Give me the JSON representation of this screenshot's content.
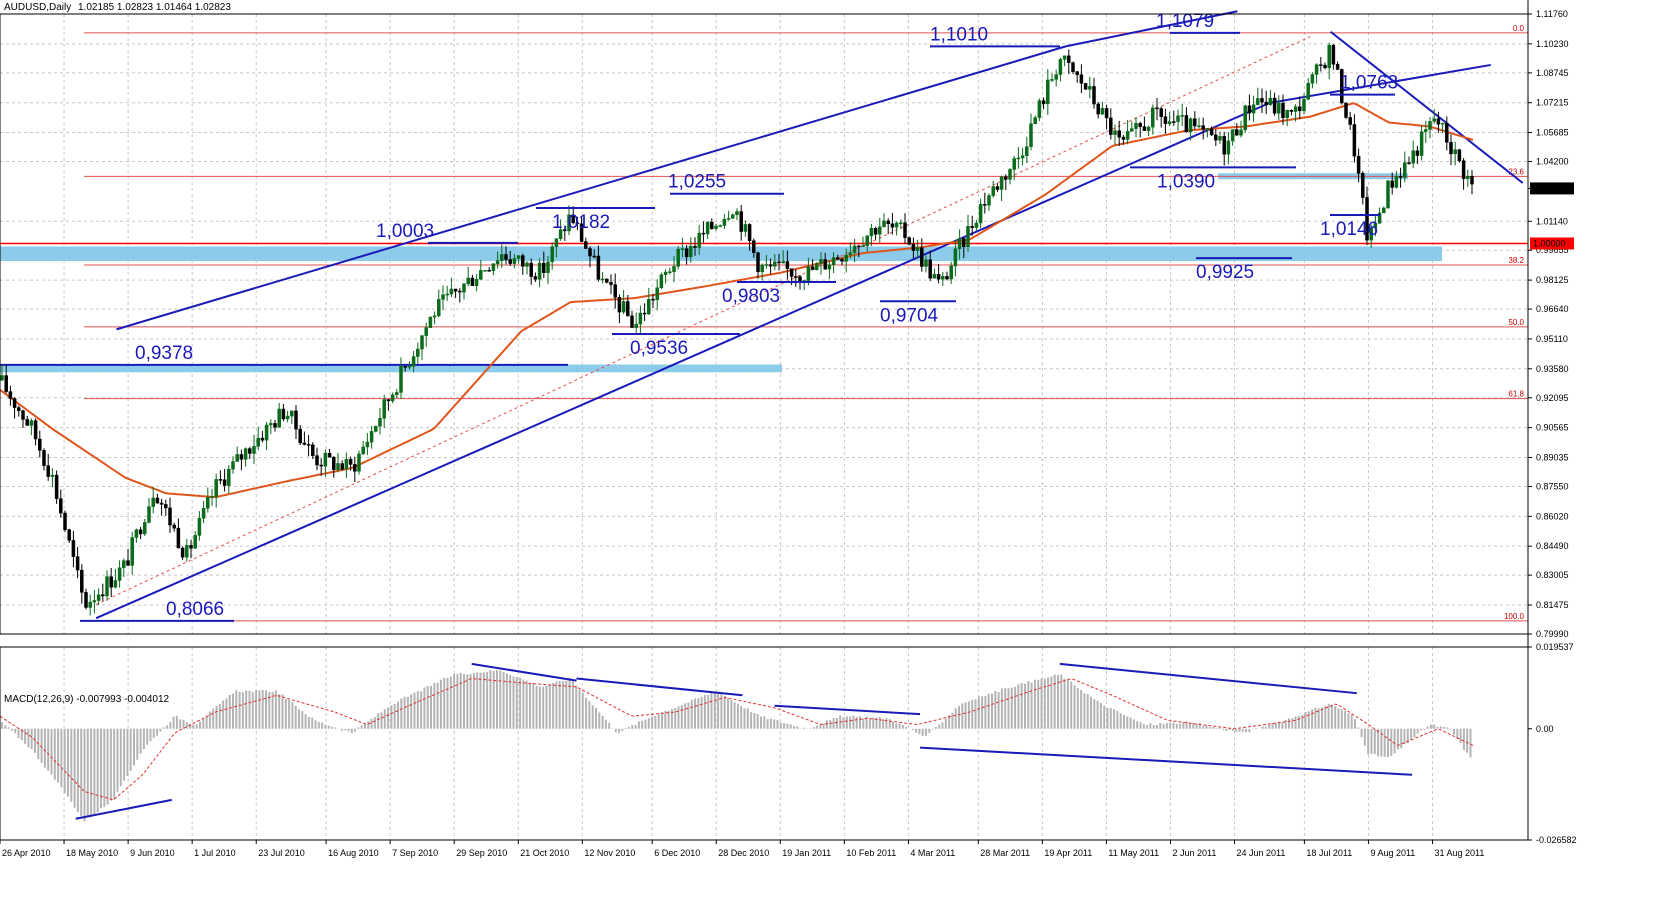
{
  "window": {
    "symbol_label": "AUDUSD,Daily",
    "ohlc_label": "1.02185 1.02823 1.01464 1.02823",
    "macd_label": "MACD(12,26,9) -0.007993 -0.004012"
  },
  "colors": {
    "background": "#ffffff",
    "grid": "#c8c8c8",
    "candle_up": "#0a6b1a",
    "candle_down": "#000000",
    "moving_average": "#e0551b",
    "trendline": "#1a1ab8",
    "fib_line": "#e05050",
    "zone": "#86c8e8",
    "macd_hist": "#b4b4b4",
    "macd_signal": "#e03030",
    "current_price_bg": "#000000",
    "level_price_bg": "#ff0000"
  },
  "chart_data": {
    "type": "candlestick",
    "title": "",
    "main_panel": {
      "price_scale": [
        "1.11760",
        "1.10230",
        "1.08745",
        "1.07215",
        "1.05685",
        "1.04200",
        "1.02823",
        "1.01140",
        "0.99655",
        "0.98125",
        "0.96640",
        "0.95110",
        "0.93580",
        "0.92095",
        "0.90565",
        "0.89035",
        "0.87550",
        "0.86020",
        "0.84490",
        "0.83005",
        "0.81475",
        "0.79990"
      ],
      "ylim": [
        0.7999,
        1.1176
      ],
      "current_price": "1.02823",
      "marked_price": "1.00000",
      "fibonacci_levels": [
        {
          "label": "0.0",
          "price": 1.1079
        },
        {
          "label": "23.6",
          "price": 1.0344
        },
        {
          "label": "38.2",
          "price": 0.989
        },
        {
          "label": "50.0",
          "price": 0.9573
        },
        {
          "label": "61.8",
          "price": 0.9205
        },
        {
          "label": "100.0",
          "price": 0.8066
        }
      ],
      "annotations": [
        {
          "text": "1,1010",
          "price": 1.101,
          "date": "2011-04-25"
        },
        {
          "text": "1,1079",
          "price": 1.1079,
          "date": "2011-07-27"
        },
        {
          "text": "1,0763",
          "price": 1.0763,
          "date": "2011-09-01"
        },
        {
          "text": "1,0255",
          "price": 1.0255,
          "date": "2011-01-03"
        },
        {
          "text": "1,0182",
          "price": 1.0182,
          "date": "2010-11-08"
        },
        {
          "text": "1,0003",
          "price": 1.0003,
          "date": "2010-10-15"
        },
        {
          "text": "1,0390",
          "price": 1.039,
          "date": "2011-06-24"
        },
        {
          "text": "1,0146",
          "price": 1.0146,
          "date": "2011-09-12"
        },
        {
          "text": "0,9925",
          "price": 0.9925,
          "date": "2011-08-09"
        },
        {
          "text": "0,9803",
          "price": 0.9803,
          "date": "2011-01-19"
        },
        {
          "text": "0,9704",
          "price": 0.9704,
          "date": "2011-03-15"
        },
        {
          "text": "0,9536",
          "price": 0.9536,
          "date": "2010-11-30"
        },
        {
          "text": "0,9378",
          "price": 0.9378,
          "date": "2010-05-31"
        },
        {
          "text": "0,8066",
          "price": 0.8066,
          "date": "2010-05-25"
        }
      ],
      "zones": [
        {
          "from": 0.991,
          "to": 0.9985
        },
        {
          "from": 0.934,
          "to": 0.938
        },
        {
          "from": 1.0335,
          "to": 1.036
        }
      ]
    },
    "macd_panel": {
      "price_scale": [
        "0.019537",
        "0.00",
        "-0.026582"
      ],
      "ylim": [
        -0.026582,
        0.019537
      ]
    },
    "date_ticks": [
      "26 Apr 2010",
      "18 May 2010",
      "9 Jun 2010",
      "1 Jul 2010",
      "23 Jul 2010",
      "16 Aug 2010",
      "7 Sep 2010",
      "29 Sep 2010",
      "21 Oct 2010",
      "12 Nov 2010",
      "6 Dec 2010",
      "28 Dec 2010",
      "19 Jan 2011",
      "10 Feb 2011",
      "4 Mar 2011",
      "28 Mar 2011",
      "19 Apr 2011",
      "11 May 2011",
      "2 Jun 2011",
      "24 Jun 2011",
      "18 Jul 2011",
      "9 Aug 2011",
      "31 Aug 2011"
    ],
    "series": [
      {
        "name": "AUDUSD",
        "type": "candlestick",
        "anchors": [
          [
            "2010-04-26",
            0.93
          ],
          [
            "2010-05-07",
            0.905
          ],
          [
            "2010-05-14",
            0.88
          ],
          [
            "2010-05-25",
            0.815
          ],
          [
            "2010-06-08",
            0.835
          ],
          [
            "2010-06-18",
            0.875
          ],
          [
            "2010-06-29",
            0.84
          ],
          [
            "2010-07-09",
            0.875
          ],
          [
            "2010-07-20",
            0.895
          ],
          [
            "2010-08-02",
            0.915
          ],
          [
            "2010-08-12",
            0.89
          ],
          [
            "2010-08-25",
            0.885
          ],
          [
            "2010-09-08",
            0.925
          ],
          [
            "2010-09-22",
            0.965
          ],
          [
            "2010-10-07",
            0.985
          ],
          [
            "2010-10-15",
            0.995
          ],
          [
            "2010-10-29",
            0.985
          ],
          [
            "2010-11-08",
            1.015
          ],
          [
            "2010-11-19",
            0.98
          ],
          [
            "2010-11-30",
            0.958
          ],
          [
            "2010-12-13",
            0.99
          ],
          [
            "2010-12-24",
            1.005
          ],
          [
            "2011-01-03",
            1.02
          ],
          [
            "2011-01-12",
            0.988
          ],
          [
            "2011-01-28",
            0.985
          ],
          [
            "2011-02-09",
            0.995
          ],
          [
            "2011-02-22",
            1.01
          ],
          [
            "2011-03-03",
            1.005
          ],
          [
            "2011-03-15",
            0.978
          ],
          [
            "2011-03-29",
            1.02
          ],
          [
            "2011-04-11",
            1.045
          ],
          [
            "2011-04-25",
            1.095
          ],
          [
            "2011-05-04",
            1.08
          ],
          [
            "2011-05-16",
            1.05
          ],
          [
            "2011-05-27",
            1.065
          ],
          [
            "2011-06-08",
            1.06
          ],
          [
            "2011-06-21",
            1.05
          ],
          [
            "2011-07-01",
            1.075
          ],
          [
            "2011-07-14",
            1.065
          ],
          [
            "2011-07-27",
            1.1
          ],
          [
            "2011-08-04",
            1.05
          ],
          [
            "2011-08-09",
            1.0
          ],
          [
            "2011-08-16",
            1.03
          ],
          [
            "2011-08-24",
            1.045
          ],
          [
            "2011-09-01",
            1.065
          ],
          [
            "2011-09-08",
            1.045
          ],
          [
            "2011-09-14",
            1.0282
          ]
        ]
      },
      {
        "name": "MA",
        "type": "line",
        "anchors": [
          [
            "2010-04-26",
            0.925
          ],
          [
            "2010-05-14",
            0.905
          ],
          [
            "2010-06-08",
            0.88
          ],
          [
            "2010-06-22",
            0.872
          ],
          [
            "2010-07-09",
            0.87
          ],
          [
            "2010-08-02",
            0.878
          ],
          [
            "2010-08-25",
            0.885
          ],
          [
            "2010-09-22",
            0.905
          ],
          [
            "2010-10-07",
            0.93
          ],
          [
            "2010-10-22",
            0.955
          ],
          [
            "2010-11-08",
            0.97
          ],
          [
            "2010-11-30",
            0.972
          ],
          [
            "2010-12-24",
            0.978
          ],
          [
            "2011-01-19",
            0.985
          ],
          [
            "2011-02-16",
            0.995
          ],
          [
            "2011-03-08",
            0.998
          ],
          [
            "2011-03-25",
            1.002
          ],
          [
            "2011-04-20",
            1.025
          ],
          [
            "2011-05-13",
            1.05
          ],
          [
            "2011-06-08",
            1.058
          ],
          [
            "2011-06-28",
            1.06
          ],
          [
            "2011-07-20",
            1.065
          ],
          [
            "2011-08-04",
            1.072
          ],
          [
            "2011-08-16",
            1.062
          ],
          [
            "2011-08-30",
            1.06
          ],
          [
            "2011-09-14",
            1.053
          ]
        ]
      },
      {
        "name": "MACD",
        "type": "histogram",
        "anchors": [
          [
            "2010-04-26",
            0.002
          ],
          [
            "2010-05-07",
            -0.005
          ],
          [
            "2010-05-18",
            -0.015
          ],
          [
            "2010-05-25",
            -0.022
          ],
          [
            "2010-06-04",
            -0.017
          ],
          [
            "2010-06-14",
            -0.005
          ],
          [
            "2010-06-25",
            0.003
          ],
          [
            "2010-07-02",
            0.001
          ],
          [
            "2010-07-16",
            0.009
          ],
          [
            "2010-07-30",
            0.009
          ],
          [
            "2010-08-12",
            0.002
          ],
          [
            "2010-08-25",
            -0.001
          ],
          [
            "2010-09-08",
            0.006
          ],
          [
            "2010-09-29",
            0.013
          ],
          [
            "2010-10-15",
            0.014
          ],
          [
            "2010-10-29",
            0.01
          ],
          [
            "2010-11-08",
            0.012
          ],
          [
            "2010-11-24",
            -0.001
          ],
          [
            "2010-12-06",
            0.003
          ],
          [
            "2010-12-28",
            0.009
          ],
          [
            "2011-01-12",
            0.003
          ],
          [
            "2011-01-28",
            0.0
          ],
          [
            "2011-02-09",
            0.003
          ],
          [
            "2011-02-25",
            0.0025
          ],
          [
            "2011-03-10",
            -0.002
          ],
          [
            "2011-03-22",
            0.006
          ],
          [
            "2011-04-08",
            0.01
          ],
          [
            "2011-04-25",
            0.013
          ],
          [
            "2011-05-09",
            0.006
          ],
          [
            "2011-05-24",
            0.001
          ],
          [
            "2011-06-08",
            0.0015
          ],
          [
            "2011-06-27",
            -0.001
          ],
          [
            "2011-07-11",
            0.002
          ],
          [
            "2011-07-27",
            0.006
          ],
          [
            "2011-08-04",
            0.003
          ],
          [
            "2011-08-09",
            -0.006
          ],
          [
            "2011-08-16",
            -0.007
          ],
          [
            "2011-08-30",
            0.001
          ],
          [
            "2011-09-06",
            0.0
          ],
          [
            "2011-09-14",
            -0.008
          ]
        ]
      },
      {
        "name": "Signal",
        "type": "line",
        "anchors": [
          [
            "2010-04-26",
            0.003
          ],
          [
            "2010-05-07",
            -0.002
          ],
          [
            "2010-05-25",
            -0.015
          ],
          [
            "2010-06-04",
            -0.017
          ],
          [
            "2010-06-14",
            -0.011
          ],
          [
            "2010-06-25",
            -0.001
          ],
          [
            "2010-07-09",
            0.004
          ],
          [
            "2010-07-30",
            0.008
          ],
          [
            "2010-08-19",
            0.004
          ],
          [
            "2010-08-30",
            0.001
          ],
          [
            "2010-09-15",
            0.006
          ],
          [
            "2010-10-05",
            0.012
          ],
          [
            "2010-10-22",
            0.011
          ],
          [
            "2010-11-10",
            0.01
          ],
          [
            "2010-11-29",
            0.003
          ],
          [
            "2010-12-14",
            0.004
          ],
          [
            "2010-12-31",
            0.0075
          ],
          [
            "2011-01-17",
            0.005
          ],
          [
            "2011-02-02",
            0.001
          ],
          [
            "2011-02-18",
            0.0025
          ],
          [
            "2011-03-07",
            0.001
          ],
          [
            "2011-03-25",
            0.004
          ],
          [
            "2011-04-15",
            0.009
          ],
          [
            "2011-04-29",
            0.012
          ],
          [
            "2011-05-13",
            0.008
          ],
          [
            "2011-06-01",
            0.002
          ],
          [
            "2011-06-24",
            0.0
          ],
          [
            "2011-07-15",
            0.002
          ],
          [
            "2011-07-29",
            0.006
          ],
          [
            "2011-08-09",
            0.001
          ],
          [
            "2011-08-19",
            -0.004
          ],
          [
            "2011-09-02",
            0.0
          ],
          [
            "2011-09-14",
            -0.004
          ]
        ]
      }
    ]
  }
}
